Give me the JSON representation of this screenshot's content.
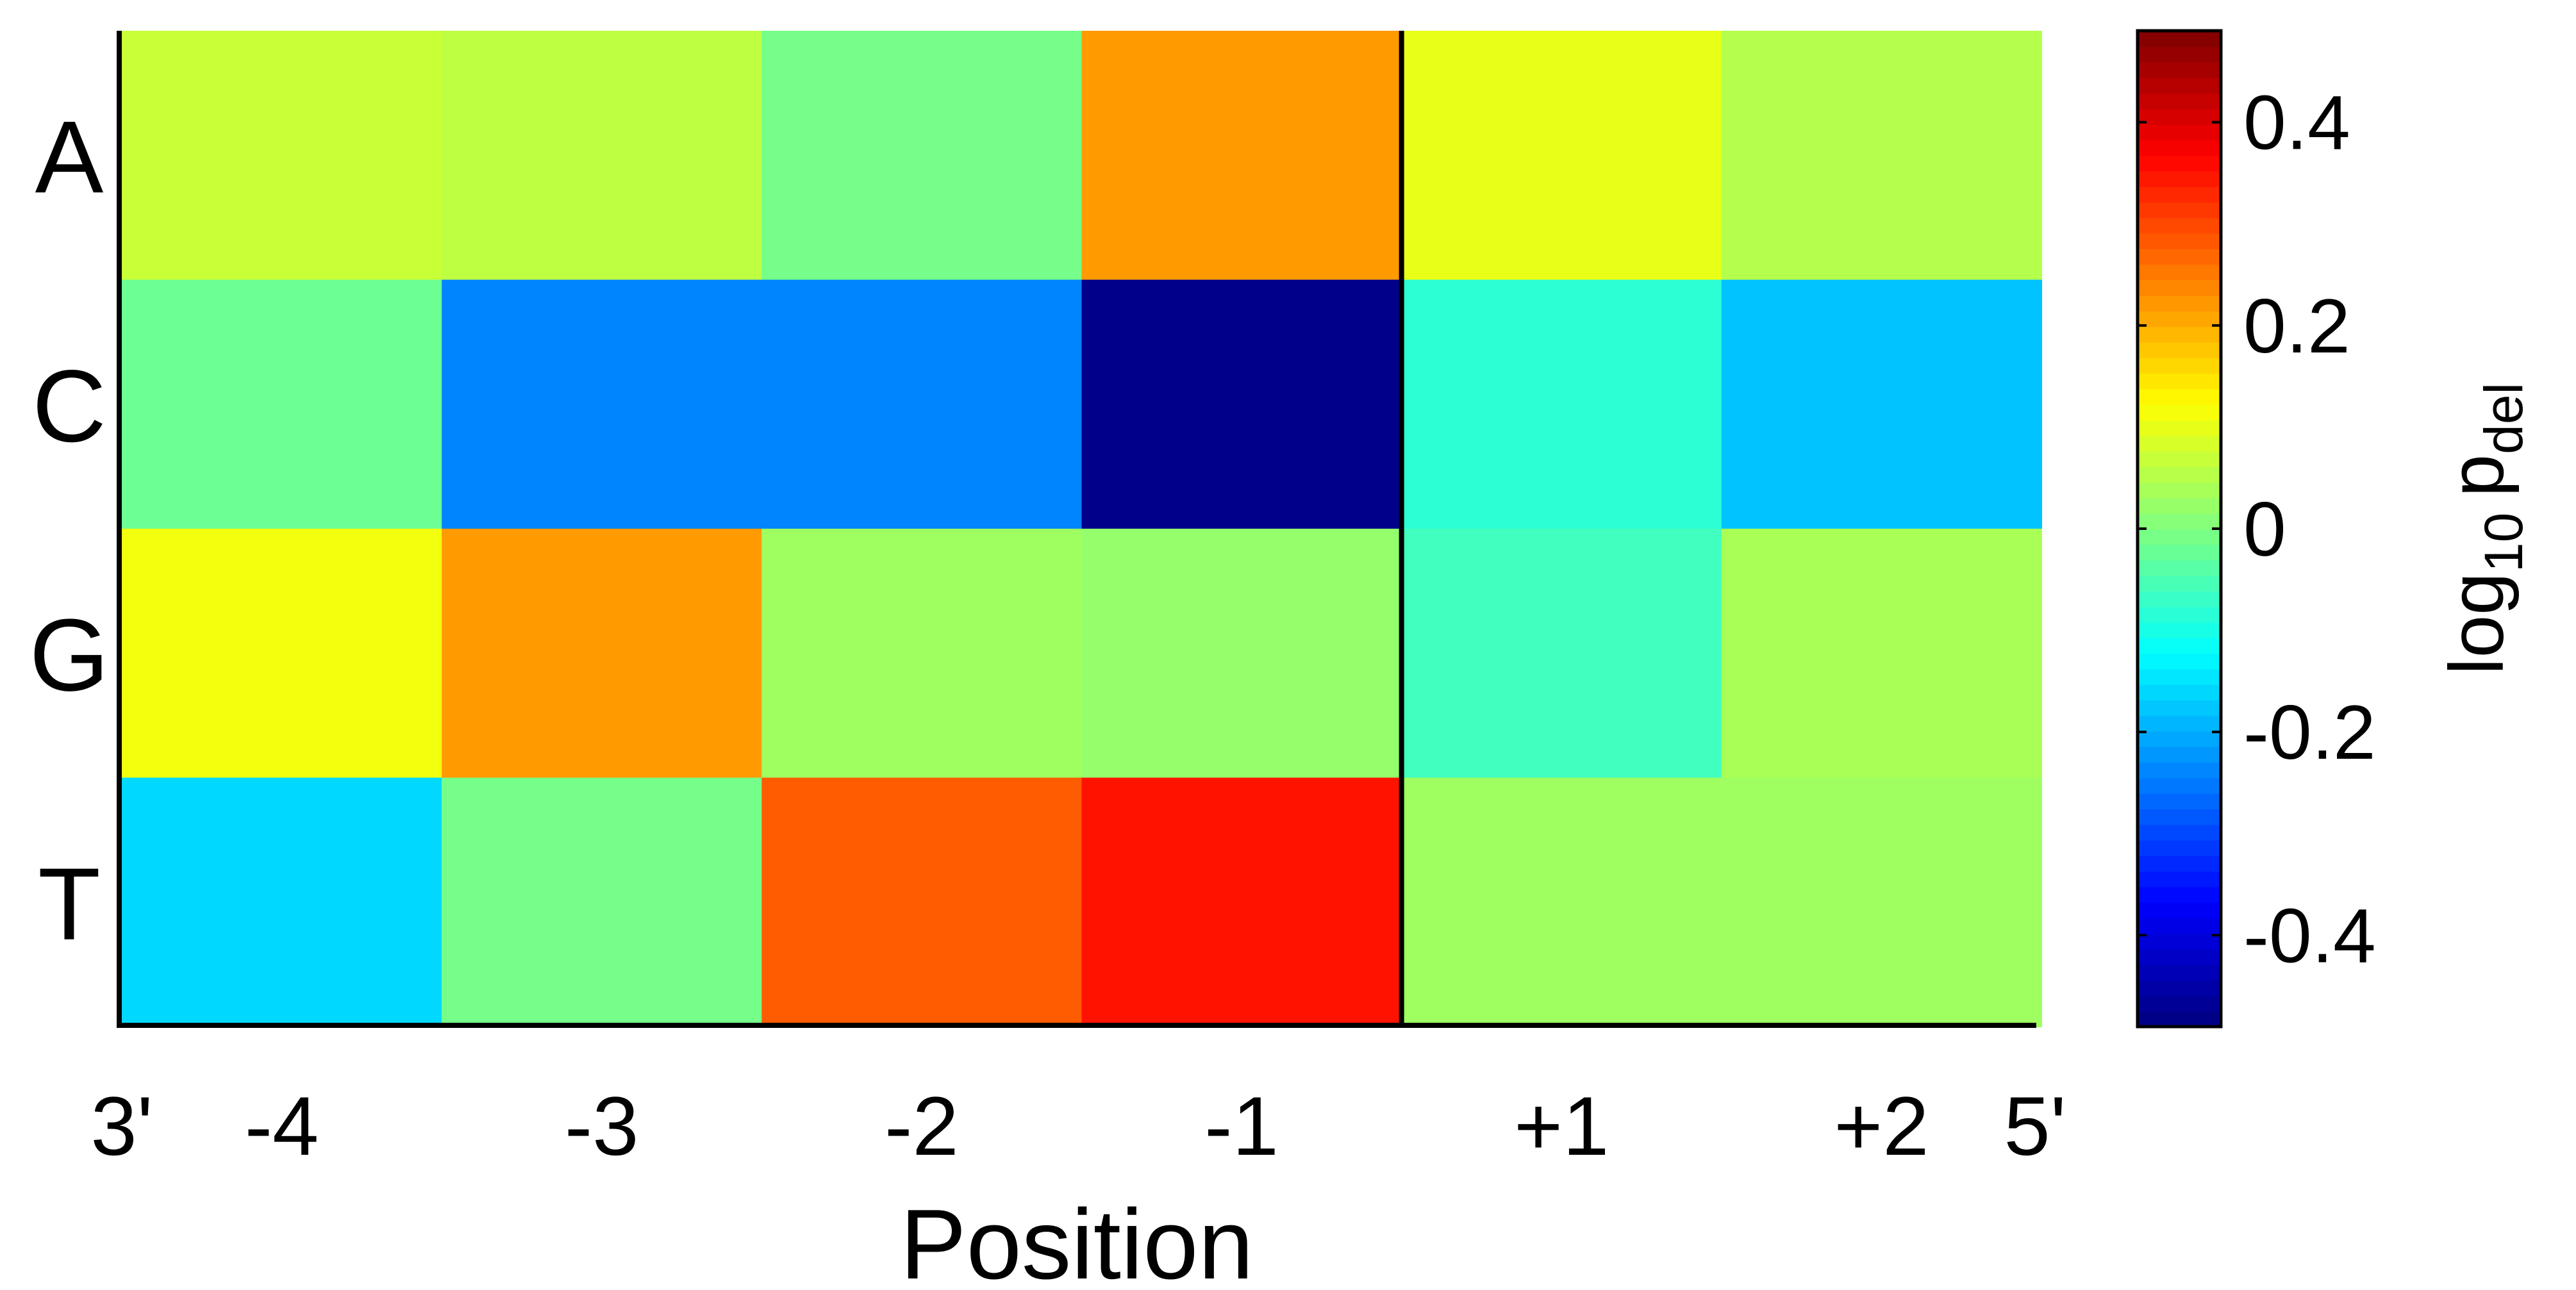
{
  "chart_data": {
    "type": "heatmap",
    "xlabel": "Position",
    "x_categories": [
      "-4",
      "-3",
      "-2",
      "-1",
      "+1",
      "+2"
    ],
    "x_end_labels": {
      "left": "3'",
      "right": "5'"
    },
    "y_categories": [
      "A",
      "C",
      "G",
      "T"
    ],
    "values": [
      [
        0.07,
        0.06,
        -0.01,
        0.22,
        0.1,
        0.05
      ],
      [
        -0.02,
        -0.24,
        -0.24,
        -0.48,
        -0.08,
        -0.18
      ],
      [
        0.11,
        0.22,
        0.03,
        0.02,
        -0.06,
        0.04
      ],
      [
        -0.16,
        -0.01,
        0.28,
        0.35,
        0.03,
        0.03
      ]
    ],
    "divider_after_column": 4,
    "colorbar": {
      "label": "log10 p_del",
      "label_main": "log",
      "label_sub": "10",
      "label_p": "p",
      "label_psub": "del",
      "range": [
        -0.49,
        0.49
      ],
      "ticks": [
        -0.4,
        -0.2,
        0,
        0.2,
        0.4
      ],
      "tick_labels": [
        "-0.4",
        "-0.2",
        "0",
        "0.2",
        "0.4"
      ],
      "colormap": "jet"
    }
  }
}
